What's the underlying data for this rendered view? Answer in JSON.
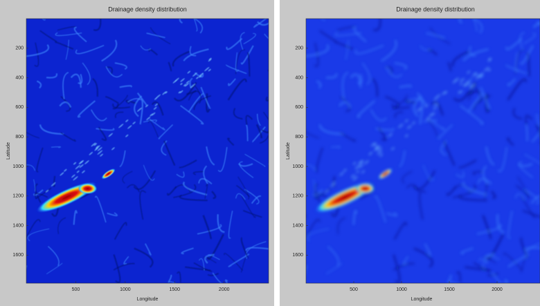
{
  "chart_data": [
    {
      "type": "heatmap",
      "title": "Drainage density distribution",
      "xlabel": "Longitude",
      "ylabel": "Latitude",
      "xlim": [
        0,
        2450
      ],
      "xticks": [
        500,
        1000,
        1500,
        2000
      ],
      "ylim": [
        0,
        1790
      ],
      "yticks": [
        200,
        400,
        600,
        800,
        1000,
        1200,
        1400,
        1600
      ],
      "y_reversed": true
    },
    {
      "type": "heatmap",
      "title": "Drainage density distribution",
      "xlabel": "Longitude",
      "ylabel": "Latitude",
      "xlim": [
        0,
        2450
      ],
      "xticks": [
        500,
        1000,
        1500,
        2000
      ],
      "ylim": [
        0,
        1790
      ],
      "yticks": [
        200,
        400,
        600,
        800,
        1000,
        1200,
        1400,
        1600
      ],
      "y_reversed": true
    }
  ]
}
